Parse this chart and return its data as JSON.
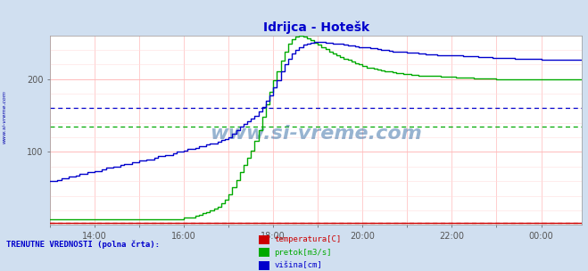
{
  "title": "Idrijca - Hotešk",
  "title_color": "#0000cc",
  "bg_color": "#d0dff0",
  "plot_bg_color": "#ffffff",
  "watermark": "www.si-vreme.com",
  "watermark_color": "#1a5a99",
  "sidebar_text": "www.si-vreme.com",
  "sidebar_color": "#0000aa",
  "legend_title": "TRENUTNE VREDNOSTI (polna črta):",
  "legend_title_color": "#0000cc",
  "legend_items": [
    "temperatura[C]",
    "pretok[m3/s]",
    "višina[cm]"
  ],
  "legend_colors": [
    "#cc0000",
    "#00aa00",
    "#0000cc"
  ],
  "x_tick_positions": [
    0,
    12,
    24,
    36,
    48,
    60,
    72,
    84,
    96,
    108,
    120,
    132
  ],
  "x_tick_labels": [
    "",
    "14:00",
    "",
    "16:00",
    "",
    "18:00",
    "",
    "20:00",
    "",
    "22:00",
    "",
    "00:00"
  ],
  "ylim": [
    0,
    260
  ],
  "n_points": 144,
  "temp_color": "#cc0000",
  "flow_color": "#00aa00",
  "height_color": "#0000cc",
  "flow_dashed_y": 135,
  "height_dashed_y": 160,
  "temp_dashed_y": 3,
  "height_values": [
    60,
    60,
    62,
    64,
    64,
    66,
    66,
    68,
    70,
    70,
    72,
    72,
    74,
    74,
    76,
    78,
    78,
    80,
    80,
    82,
    84,
    84,
    86,
    86,
    88,
    88,
    90,
    90,
    92,
    94,
    94,
    96,
    96,
    98,
    100,
    100,
    102,
    104,
    104,
    106,
    108,
    108,
    110,
    112,
    112,
    114,
    116,
    118,
    120,
    125,
    130,
    135,
    138,
    142,
    146,
    150,
    155,
    162,
    170,
    178,
    188,
    198,
    210,
    220,
    228,
    235,
    240,
    244,
    247,
    249,
    250,
    251,
    251,
    251,
    250,
    250,
    249,
    248,
    248,
    247,
    246,
    246,
    245,
    244,
    244,
    243,
    242,
    242,
    241,
    240,
    240,
    239,
    238,
    238,
    237,
    237,
    236,
    236,
    236,
    235,
    235,
    234,
    234,
    234,
    233,
    233,
    233,
    232,
    232,
    232,
    232,
    231,
    231,
    231,
    231,
    230,
    230,
    230,
    230,
    229,
    229,
    229,
    229,
    229,
    229,
    228,
    228,
    228,
    228,
    228,
    228,
    228,
    227,
    227,
    227,
    227,
    227,
    227,
    227,
    227,
    227,
    227,
    226,
    226
  ],
  "flow_values": [
    8,
    8,
    8,
    8,
    8,
    8,
    8,
    8,
    8,
    8,
    8,
    8,
    8,
    8,
    8,
    8,
    8,
    8,
    8,
    8,
    8,
    8,
    8,
    8,
    8,
    8,
    8,
    8,
    8,
    8,
    8,
    8,
    8,
    8,
    8,
    8,
    10,
    10,
    10,
    12,
    14,
    16,
    18,
    20,
    22,
    25,
    30,
    35,
    42,
    52,
    62,
    72,
    82,
    92,
    102,
    115,
    130,
    148,
    165,
    182,
    198,
    210,
    225,
    238,
    248,
    255,
    258,
    260,
    258,
    256,
    253,
    250,
    247,
    244,
    241,
    238,
    235,
    232,
    230,
    228,
    226,
    224,
    222,
    220,
    218,
    216,
    215,
    214,
    213,
    212,
    211,
    210,
    209,
    208,
    208,
    207,
    207,
    206,
    206,
    205,
    205,
    205,
    204,
    204,
    204,
    203,
    203,
    203,
    203,
    202,
    202,
    202,
    202,
    202,
    201,
    201,
    201,
    201,
    201,
    201,
    200,
    200,
    200,
    200,
    200,
    200,
    200,
    200,
    200,
    199,
    199,
    199,
    199,
    199,
    199,
    199,
    199,
    199,
    199,
    199,
    199,
    199,
    199,
    199
  ],
  "temp_values": [
    3,
    3,
    3,
    3,
    3,
    3,
    3,
    3,
    3,
    3,
    3,
    3,
    3,
    3,
    3,
    3,
    3,
    3,
    3,
    3,
    3,
    3,
    3,
    3,
    3,
    3,
    3,
    3,
    3,
    3,
    3,
    3,
    3,
    3,
    3,
    3,
    3,
    3,
    3,
    3,
    3,
    3,
    3,
    3,
    3,
    3,
    3,
    3,
    3,
    3,
    3,
    3,
    3,
    3,
    3,
    3,
    3,
    3,
    3,
    3,
    3,
    3,
    3,
    3,
    3,
    3,
    3,
    3,
    3,
    3,
    3,
    3,
    3,
    3,
    3,
    3,
    3,
    3,
    3,
    3,
    3,
    3,
    3,
    3,
    3,
    3,
    3,
    3,
    3,
    3,
    3,
    3,
    3,
    3,
    3,
    3,
    3,
    3,
    3,
    3,
    3,
    3,
    3,
    3,
    3,
    3,
    3,
    3,
    3,
    3,
    3,
    3,
    3,
    3,
    3,
    3,
    3,
    3,
    3,
    3,
    3,
    3,
    3,
    3,
    3,
    3,
    3,
    3,
    3,
    3,
    3,
    3,
    3,
    3,
    3,
    3,
    3,
    3,
    3,
    3,
    3,
    3,
    3,
    3
  ]
}
